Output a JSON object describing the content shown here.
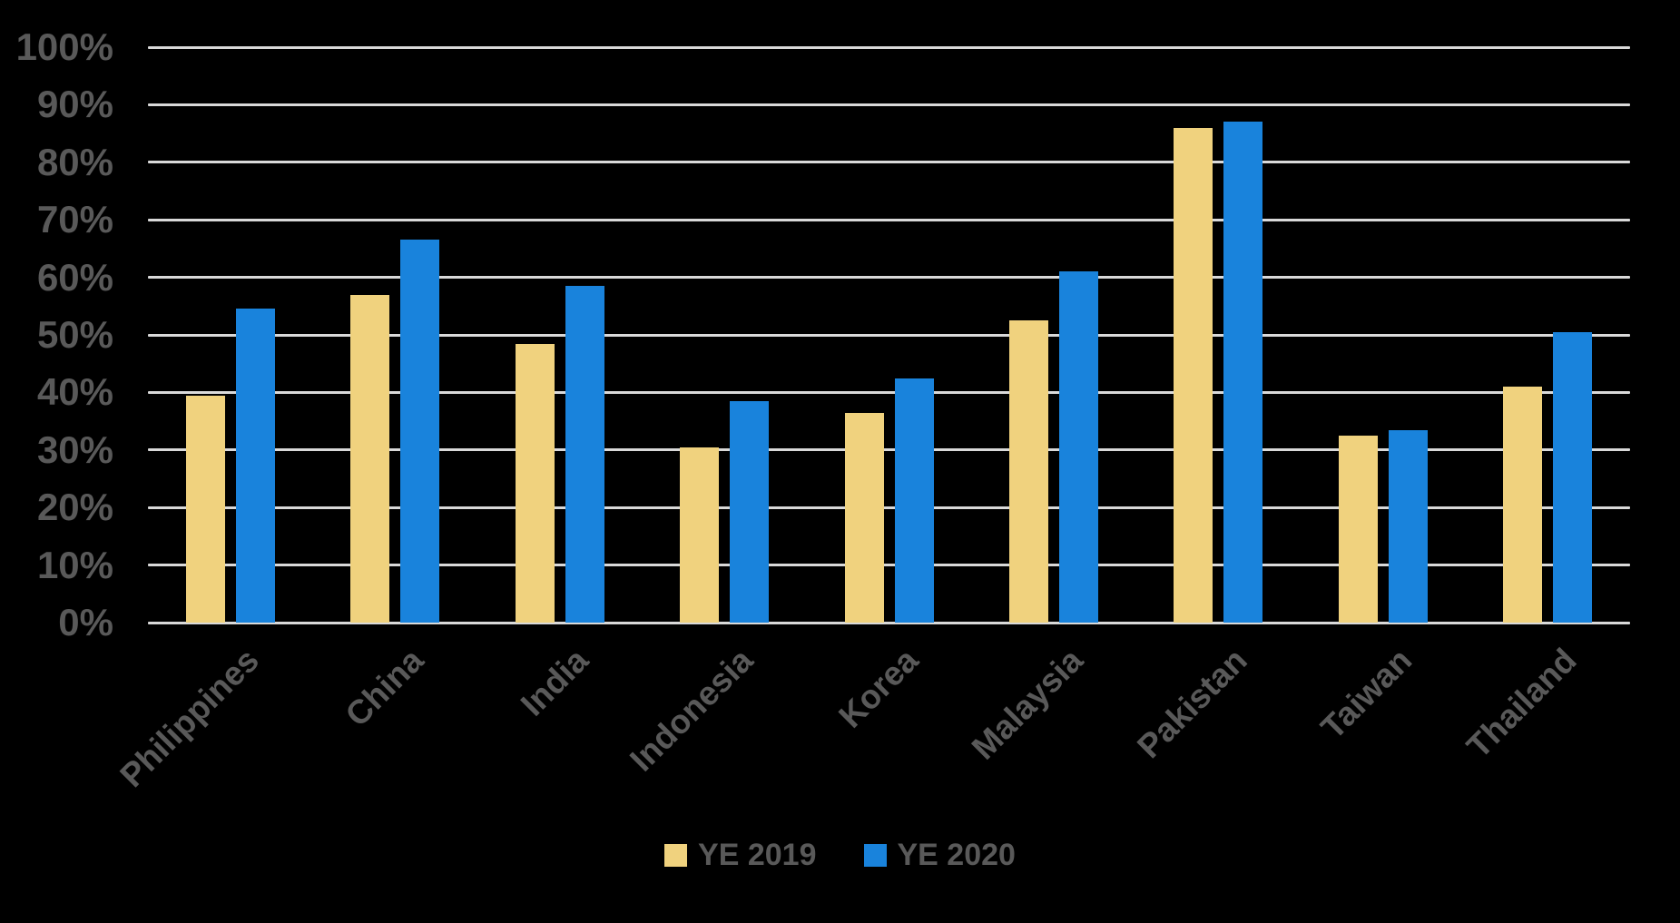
{
  "chart_data": {
    "type": "bar",
    "title": "",
    "categories": [
      "Philippines",
      "China",
      "India",
      "Indonesia",
      "Korea",
      "Malaysia",
      "Pakistan",
      "Taiwan",
      "Thailand"
    ],
    "series": [
      {
        "name": "YE 2019",
        "color": "#F0D27E",
        "values": [
          39.5,
          57,
          48.5,
          30.5,
          36.5,
          52.5,
          86,
          32.5,
          41
        ]
      },
      {
        "name": "YE 2020",
        "color": "#1983DC",
        "values": [
          54.5,
          66.5,
          58.5,
          38.5,
          42.5,
          61,
          87,
          33.5,
          50.5
        ]
      }
    ],
    "xlabel": "",
    "ylabel": "",
    "ylim": [
      0,
      100
    ],
    "ytick_step": 10,
    "ytick_labels": [
      "0%",
      "10%",
      "20%",
      "30%",
      "40%",
      "50%",
      "60%",
      "70%",
      "80%",
      "90%",
      "100%"
    ],
    "grid": true,
    "legend_position": "bottom"
  },
  "colors": {
    "background": "#000000",
    "gridline": "#D9D9D9",
    "axis_text": "#595959",
    "legend_text": "#595959"
  },
  "legend": {
    "entries": [
      {
        "label": "YE 2019"
      },
      {
        "label": "YE 2020"
      }
    ]
  }
}
